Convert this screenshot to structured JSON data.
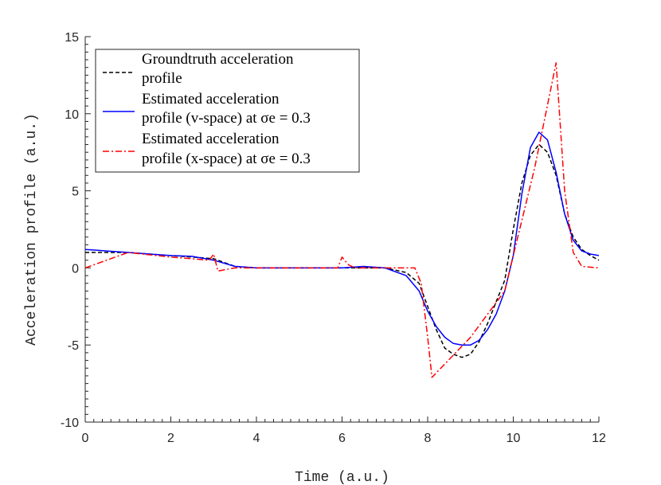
{
  "chart_data": {
    "type": "line",
    "title": "",
    "xlabel": "Time (a.u.)",
    "ylabel": "Acceleration profile (a.u.)",
    "xlim": [
      0,
      12
    ],
    "ylim": [
      -10,
      15
    ],
    "xticks": [
      "0",
      "2",
      "4",
      "6",
      "8",
      "10",
      "12"
    ],
    "yticks": [
      "-10",
      "-5",
      "0",
      "5",
      "10",
      "15"
    ],
    "grid": false,
    "legend_position": "top-left",
    "series": [
      {
        "name": "Groundtruth acceleration profile",
        "legend_lines": [
          "Groundtruth acceleration",
          "profile"
        ],
        "color": "#000000",
        "style": "dashed",
        "x": [
          0,
          0.5,
          1,
          1.5,
          2,
          2.5,
          3,
          3.5,
          4,
          4.5,
          5,
          5.5,
          6,
          6.5,
          7,
          7.5,
          7.8,
          8,
          8.2,
          8.4,
          8.6,
          8.8,
          9,
          9.2,
          9.4,
          9.6,
          9.8,
          10,
          10.2,
          10.4,
          10.6,
          10.8,
          11,
          11.2,
          11.4,
          11.6,
          11.8,
          12
        ],
        "y": [
          1.0,
          1.0,
          1.0,
          0.9,
          0.8,
          0.7,
          0.6,
          0.1,
          0.0,
          0.0,
          0.0,
          0.0,
          0.0,
          0.0,
          0.0,
          -0.3,
          -1.0,
          -2.5,
          -4.0,
          -5.2,
          -5.6,
          -5.8,
          -5.6,
          -4.8,
          -3.6,
          -2.2,
          -0.8,
          2.5,
          5.5,
          7.3,
          8.0,
          7.5,
          6.0,
          3.5,
          2.0,
          1.2,
          0.8,
          0.5
        ]
      },
      {
        "name": "Estimated acceleration profile (v-space) at σe = 0.3",
        "legend_lines": [
          "Estimated acceleration",
          "profile (v-space) at σe = 0.3"
        ],
        "color": "#0000ff",
        "style": "solid",
        "x": [
          0,
          0.5,
          1,
          1.5,
          2,
          2.5,
          3,
          3.5,
          4,
          4.5,
          5,
          5.5,
          6,
          6.5,
          7,
          7.5,
          7.8,
          8,
          8.2,
          8.4,
          8.6,
          8.8,
          9,
          9.2,
          9.4,
          9.6,
          9.8,
          10,
          10.2,
          10.4,
          10.6,
          10.8,
          11,
          11.2,
          11.4,
          11.6,
          11.8,
          12
        ],
        "y": [
          1.2,
          1.1,
          1.0,
          0.9,
          0.8,
          0.75,
          0.5,
          0.1,
          0.0,
          0.0,
          0.0,
          0.0,
          0.0,
          0.1,
          0.0,
          -0.5,
          -1.5,
          -2.8,
          -3.8,
          -4.5,
          -4.9,
          -5.0,
          -5.0,
          -4.7,
          -4.0,
          -3.0,
          -1.5,
          0.8,
          4.8,
          7.8,
          8.8,
          8.3,
          6.2,
          3.5,
          1.8,
          1.1,
          0.9,
          0.8
        ]
      },
      {
        "name": "Estimated acceleration profile (x-space) at σe = 0.3",
        "legend_lines": [
          "Estimated acceleration",
          "profile (x-space) at σe = 0.3"
        ],
        "color": "#ff0000",
        "style": "dashdot",
        "x": [
          0,
          1,
          2,
          2.9,
          3.0,
          3.1,
          3.5,
          4,
          5,
          5.9,
          6.0,
          6.15,
          6.3,
          7,
          7.7,
          7.85,
          8.0,
          8.1,
          9,
          9.8,
          10,
          10.5,
          11.0,
          11.2,
          11.4,
          11.6,
          12
        ],
        "y": [
          0.0,
          1.0,
          0.7,
          0.5,
          0.9,
          -0.2,
          0.0,
          0.0,
          0.0,
          0.0,
          0.7,
          0.2,
          0.0,
          0.0,
          0.0,
          -1.0,
          -4.5,
          -7.1,
          -4.5,
          -1.5,
          0.8,
          6.5,
          13.3,
          5.0,
          1.0,
          0.1,
          0.0
        ]
      }
    ]
  }
}
